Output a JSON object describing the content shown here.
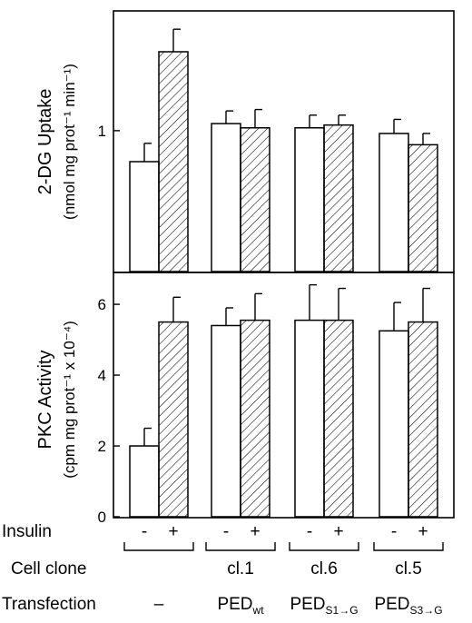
{
  "chart_data": [
    {
      "type": "bar",
      "panel": "top",
      "ylabel_line1": "2-DG Uptake",
      "ylabel_line2": "(nmol mg prot⁻¹ min⁻¹)",
      "ylim": [
        0,
        1.85
      ],
      "yticks": [
        {
          "value": 1,
          "label": "1"
        }
      ],
      "groups": [
        "none",
        "cl.1",
        "cl.6",
        "cl.5"
      ],
      "series": [
        {
          "name": "-",
          "values": [
            0.78,
            1.05,
            1.02,
            0.98
          ],
          "errors": [
            0.13,
            0.09,
            0.09,
            0.1
          ],
          "pattern": "open"
        },
        {
          "name": "+",
          "values": [
            1.56,
            1.02,
            1.04,
            0.9
          ],
          "errors": [
            0.16,
            0.13,
            0.07,
            0.08
          ],
          "pattern": "hatched"
        }
      ]
    },
    {
      "type": "bar",
      "panel": "bottom",
      "ylabel_line1": "PKC Activity",
      "ylabel_line2": "(cpm mg prot⁻¹ x 10⁻⁴)",
      "ylim": [
        0,
        6.9
      ],
      "yticks": [
        {
          "value": 0,
          "label": "0"
        },
        {
          "value": 2,
          "label": "2"
        },
        {
          "value": 4,
          "label": "4"
        },
        {
          "value": 6,
          "label": "6"
        }
      ],
      "groups": [
        "none",
        "cl.1",
        "cl.6",
        "cl.5"
      ],
      "series": [
        {
          "name": "-",
          "values": [
            2.0,
            5.4,
            5.55,
            5.25
          ],
          "errors": [
            0.5,
            0.5,
            1.0,
            0.8
          ],
          "pattern": "open"
        },
        {
          "name": "+",
          "values": [
            5.5,
            5.55,
            5.55,
            5.5
          ],
          "errors": [
            0.7,
            0.75,
            0.9,
            0.95
          ],
          "pattern": "hatched"
        }
      ]
    }
  ],
  "rows": {
    "insulin": {
      "label": "Insulin",
      "minus": "-",
      "plus": "+"
    },
    "cell_clone": {
      "label": "Cell clone",
      "clones": [
        "",
        "cl.1",
        "cl.6",
        "cl.5"
      ]
    },
    "transfection": {
      "label": "Transfection",
      "items": [
        {
          "main": "–",
          "sub": ""
        },
        {
          "main": "PED",
          "sub": "wt"
        },
        {
          "main": "PED",
          "sub": "S1→G"
        },
        {
          "main": "PED",
          "sub": "S3→G"
        }
      ]
    }
  }
}
